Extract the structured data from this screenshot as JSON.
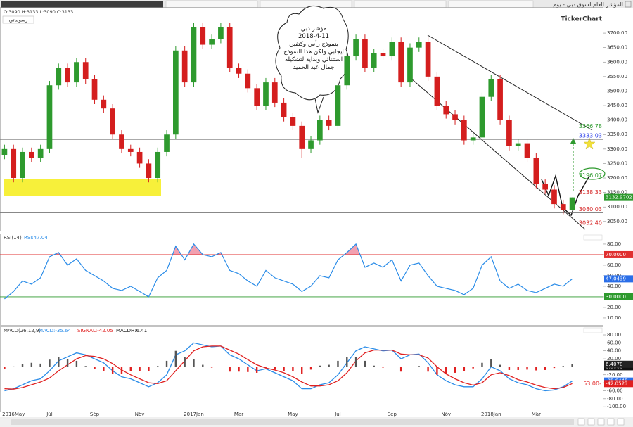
{
  "window": {
    "title": "المؤشر العام لسوق دبي - يوم",
    "logo": "TickerChart",
    "button": "رسوماتي"
  },
  "chart_data": [
    {
      "type": "candlestick",
      "ohlc_label": "O:3090 H:3133 L:3090 C:3133",
      "ylim": [
        3018,
        3790
      ],
      "yticks": [
        {
          "value": 3050,
          "label": "3050.00"
        },
        {
          "value": 3100,
          "label": "3100.00"
        },
        {
          "value": 3150,
          "label": "3150.00"
        },
        {
          "value": 3200,
          "label": "3200.00"
        },
        {
          "value": 3250,
          "label": "3250.00"
        },
        {
          "value": 3300,
          "label": "3300.00"
        },
        {
          "value": 3350,
          "label": "3350.00"
        },
        {
          "value": 3400,
          "label": "3400.00"
        },
        {
          "value": 3450,
          "label": "3450.00"
        },
        {
          "value": 3500,
          "label": "3500.00"
        },
        {
          "value": 3550,
          "label": "3550.00"
        },
        {
          "value": 3600,
          "label": "3600.00"
        },
        {
          "value": 3650,
          "label": "3650.00"
        },
        {
          "value": 3700,
          "label": "3700.00"
        }
      ],
      "up_color": "#2e9a2e",
      "down_color": "#d41e1e",
      "open": [
        3280,
        3300,
        3200,
        3290,
        3270,
        3300,
        3520,
        3580,
        3530,
        3600,
        3540,
        3470,
        3440,
        3350,
        3300,
        3290,
        3250,
        3200,
        3290,
        3350,
        3640,
        3530,
        3720,
        3660,
        3680,
        3720,
        3580,
        3560,
        3510,
        3450,
        3530,
        3460,
        3410,
        3380,
        3300,
        3330,
        3400,
        3380,
        3520,
        3620,
        3680,
        3580,
        3630,
        3620,
        3670,
        3530,
        3650,
        3670,
        3550,
        3450,
        3420,
        3400,
        3330,
        3340,
        3480,
        3540,
        3400,
        3310,
        3320,
        3270,
        3180,
        3160,
        3110,
        3090
      ],
      "high": [
        3315,
        3315,
        3305,
        3305,
        3315,
        3535,
        3595,
        3595,
        3615,
        3615,
        3555,
        3485,
        3455,
        3365,
        3315,
        3305,
        3265,
        3305,
        3365,
        3655,
        3655,
        3735,
        3735,
        3695,
        3735,
        3735,
        3595,
        3575,
        3525,
        3545,
        3545,
        3475,
        3425,
        3395,
        3345,
        3415,
        3415,
        3535,
        3635,
        3695,
        3695,
        3645,
        3645,
        3685,
        3685,
        3665,
        3685,
        3685,
        3565,
        3465,
        3435,
        3415,
        3355,
        3495,
        3555,
        3555,
        3415,
        3335,
        3335,
        3285,
        3195,
        3175,
        3125,
        3133
      ],
      "low": [
        3265,
        3185,
        3185,
        3255,
        3255,
        3285,
        3505,
        3515,
        3515,
        3525,
        3455,
        3425,
        3335,
        3285,
        3275,
        3235,
        3185,
        3185,
        3275,
        3335,
        3515,
        3515,
        3645,
        3645,
        3665,
        3565,
        3545,
        3495,
        3435,
        3435,
        3445,
        3395,
        3365,
        3270,
        3285,
        3315,
        3365,
        3365,
        3505,
        3605,
        3565,
        3565,
        3605,
        3605,
        3515,
        3515,
        3635,
        3535,
        3435,
        3405,
        3385,
        3315,
        3315,
        3325,
        3465,
        3385,
        3295,
        3295,
        3255,
        3165,
        3145,
        3095,
        3075,
        3090
      ],
      "close": [
        3300,
        3200,
        3290,
        3270,
        3300,
        3520,
        3580,
        3530,
        3600,
        3540,
        3470,
        3440,
        3350,
        3300,
        3290,
        3250,
        3200,
        3290,
        3350,
        3640,
        3530,
        3720,
        3660,
        3680,
        3720,
        3580,
        3560,
        3510,
        3450,
        3530,
        3460,
        3410,
        3380,
        3300,
        3330,
        3400,
        3380,
        3520,
        3620,
        3680,
        3580,
        3630,
        3620,
        3670,
        3530,
        3650,
        3670,
        3550,
        3450,
        3420,
        3400,
        3330,
        3340,
        3480,
        3540,
        3400,
        3310,
        3320,
        3270,
        3180,
        3160,
        3110,
        3090,
        3133
      ],
      "levels": [
        {
          "value": 3366.78,
          "color": "#2e9a2e",
          "line": false
        },
        {
          "value": 3333.03,
          "color": "#2a3ee8",
          "line": true
        },
        {
          "value": 3196.07,
          "color": "#2e9a2e",
          "line": true
        },
        {
          "value": 3138.33,
          "color": "#d41e1e",
          "line": true
        },
        {
          "value": 3080.03,
          "color": "#d41e1e",
          "line": true
        },
        {
          "value": 3032.4,
          "label": "3032.40",
          "color": "#d41e1e",
          "line": false
        }
      ],
      "last": 3132.9702,
      "last_color": "#2e9a2e",
      "annotation": [
        "مؤشر دبي",
        "2018-4-11",
        "بنموذج رأس وكتفين",
        "ايجابي ولكن هذا النموذج",
        "استثنائي وبداية لتشكيله",
        "جمال عبد الحميد"
      ]
    },
    {
      "type": "line",
      "title": "RSI(14)",
      "ylim": [
        3.3,
        89.3
      ],
      "yticks": [
        {
          "value": 10,
          "label": "10.00"
        },
        {
          "value": 20,
          "label": "20.00"
        },
        {
          "value": 30,
          "label": "30.00"
        },
        {
          "value": 40,
          "label": "40.00"
        },
        {
          "value": 50,
          "label": "50.00"
        },
        {
          "value": 60,
          "label": "60.00"
        },
        {
          "value": 70,
          "label": "70.00"
        },
        {
          "value": 80,
          "label": "80.00"
        }
      ],
      "series": [
        {
          "name": "RSI:47.04",
          "color": "#2a8ce8",
          "values": [
            28,
            35,
            45,
            42,
            48,
            68,
            72,
            60,
            66,
            55,
            50,
            45,
            38,
            36,
            40,
            35,
            30,
            48,
            55,
            78,
            65,
            80,
            70,
            68,
            72,
            55,
            52,
            45,
            40,
            55,
            48,
            45,
            42,
            35,
            40,
            50,
            48,
            65,
            72,
            80,
            58,
            62,
            58,
            65,
            45,
            60,
            62,
            50,
            40,
            38,
            36,
            32,
            38,
            60,
            68,
            45,
            38,
            42,
            36,
            34,
            38,
            42,
            40,
            47.04
          ]
        }
      ],
      "levels": [
        {
          "value": 70,
          "label": "70.0000",
          "color": "#e03030",
          "fill": "#f2a0b0",
          "side": "above"
        },
        {
          "value": 30,
          "label": "30.0000",
          "color": "#2e9a2e",
          "fill": "#9fd49f",
          "side": "below"
        }
      ],
      "tag": {
        "value": 47.0439,
        "color": "#2a6ee8"
      }
    },
    {
      "type": "macd",
      "title": "MACD(26,12,9)",
      "ylim": [
        -112,
        99.4
      ],
      "yticks": [
        {
          "value": 80,
          "label": "80.00"
        },
        {
          "value": 60,
          "label": "60.00"
        },
        {
          "value": 40,
          "label": "40.00"
        },
        {
          "value": 20,
          "label": "20.00"
        },
        {
          "value": 0,
          "label": "0.00"
        },
        {
          "value": -20,
          "label": "-20.00"
        },
        {
          "value": -40,
          "label": "-40.00"
        },
        {
          "value": -60,
          "label": "-60.00"
        },
        {
          "value": -80,
          "label": "-80.00"
        },
        {
          "value": -100,
          "label": "-100.00"
        }
      ],
      "categories": [
        null,
        "2016May",
        null,
        null,
        null,
        "Jul",
        null,
        null,
        null,
        null,
        "Sep",
        null,
        null,
        null,
        null,
        "Nov",
        null,
        null,
        null,
        null,
        null,
        "2017Jan",
        null,
        null,
        null,
        null,
        "Mar",
        null,
        null,
        null,
        null,
        null,
        "May",
        null,
        null,
        null,
        null,
        "Jul",
        null,
        null,
        null,
        null,
        null,
        "Sep",
        null,
        null,
        null,
        null,
        null,
        "Nov",
        null,
        null,
        null,
        null,
        "2018Jan",
        null,
        null,
        null,
        null,
        "Mar",
        null,
        null,
        null,
        null
      ],
      "series": [
        {
          "name": "MACD:-35.64",
          "color": "#2a8ce8",
          "values": [
            -60,
            -55,
            -45,
            -35,
            -30,
            -10,
            15,
            25,
            35,
            30,
            20,
            10,
            -10,
            -25,
            -30,
            -40,
            -50,
            -40,
            -20,
            30,
            40,
            60,
            55,
            50,
            52,
            30,
            20,
            5,
            -10,
            -5,
            -15,
            -25,
            -35,
            -55,
            -55,
            -45,
            -40,
            -20,
            10,
            40,
            50,
            45,
            40,
            42,
            20,
            30,
            32,
            10,
            -20,
            -35,
            -45,
            -50,
            -50,
            -30,
            0,
            -10,
            -30,
            -40,
            -45,
            -55,
            -60,
            -58,
            -50,
            -35.64
          ]
        },
        {
          "name": "SIGNAL:-42.05",
          "color": "#e02020",
          "values": [
            -55,
            -56,
            -52,
            -45,
            -38,
            -28,
            -10,
            5,
            20,
            28,
            26,
            20,
            8,
            -8,
            -20,
            -30,
            -40,
            -42,
            -35,
            -10,
            15,
            40,
            50,
            52,
            52,
            42,
            32,
            18,
            5,
            -3,
            -8,
            -15,
            -25,
            -38,
            -48,
            -48,
            -45,
            -35,
            -15,
            15,
            35,
            42,
            42,
            42,
            32,
            30,
            30,
            22,
            0,
            -18,
            -30,
            -40,
            -46,
            -40,
            -20,
            -15,
            -22,
            -32,
            -38,
            -46,
            -52,
            -55,
            -52,
            -42.05
          ]
        },
        {
          "name": "MACDH:6.41",
          "color": "#555555",
          "negative_color": "#e02020",
          "values": [
            -5,
            1,
            7,
            10,
            8,
            18,
            25,
            20,
            15,
            2,
            -6,
            -10,
            -18,
            -17,
            -10,
            -10,
            -10,
            2,
            15,
            40,
            25,
            20,
            5,
            -2,
            0,
            -12,
            -12,
            -13,
            -15,
            -2,
            -7,
            -10,
            -10,
            -17,
            -7,
            3,
            5,
            15,
            25,
            25,
            15,
            3,
            -2,
            0,
            -12,
            0,
            2,
            -12,
            -20,
            -17,
            -15,
            -10,
            -4,
            10,
            20,
            5,
            -8,
            -8,
            -7,
            -9,
            -8,
            -3,
            2,
            6.41
          ]
        }
      ],
      "levels": [
        {
          "value": 0,
          "label": "0.0000",
          "color": "#111111"
        },
        {
          "value": -53,
          "label": "53.00-",
          "color": "#e02020"
        }
      ],
      "tags": [
        {
          "value": 6.4078,
          "color": "#222222"
        },
        {
          "value": -35.6445,
          "color": "#2a6ee8"
        },
        {
          "value": -42.0523,
          "color": "#e02020"
        }
      ]
    }
  ]
}
